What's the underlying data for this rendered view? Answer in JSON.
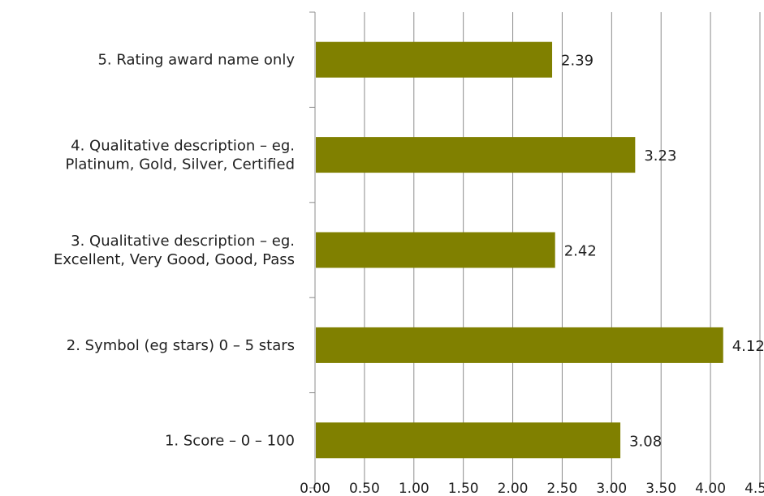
{
  "chart_data": {
    "type": "bar",
    "orientation": "horizontal",
    "categories": [
      "1. Score – 0 – 100",
      "2. Symbol (eg stars) 0 – 5 stars",
      "3. Qualitative description –  eg.\nExcellent, Very Good, Good, Pass",
      "4. Qualitative description –  eg.\nPlatinum, Gold, Silver, Certified",
      "5. Rating award name only"
    ],
    "values": [
      3.08,
      4.12,
      2.42,
      3.23,
      2.39
    ],
    "data_labels": [
      "3.08",
      "4.12",
      "2.42",
      "3.23",
      "2.39"
    ],
    "xlim": [
      0,
      4.5
    ],
    "x_ticks": [
      "0.00",
      "0.50",
      "1.00",
      "1.50",
      "2.00",
      "2.50",
      "3.00",
      "3.50",
      "4.00",
      "4.50"
    ],
    "grid": "vertical",
    "legend": "none",
    "bar_color": "#808000",
    "title": "",
    "xlabel": "",
    "ylabel": ""
  }
}
